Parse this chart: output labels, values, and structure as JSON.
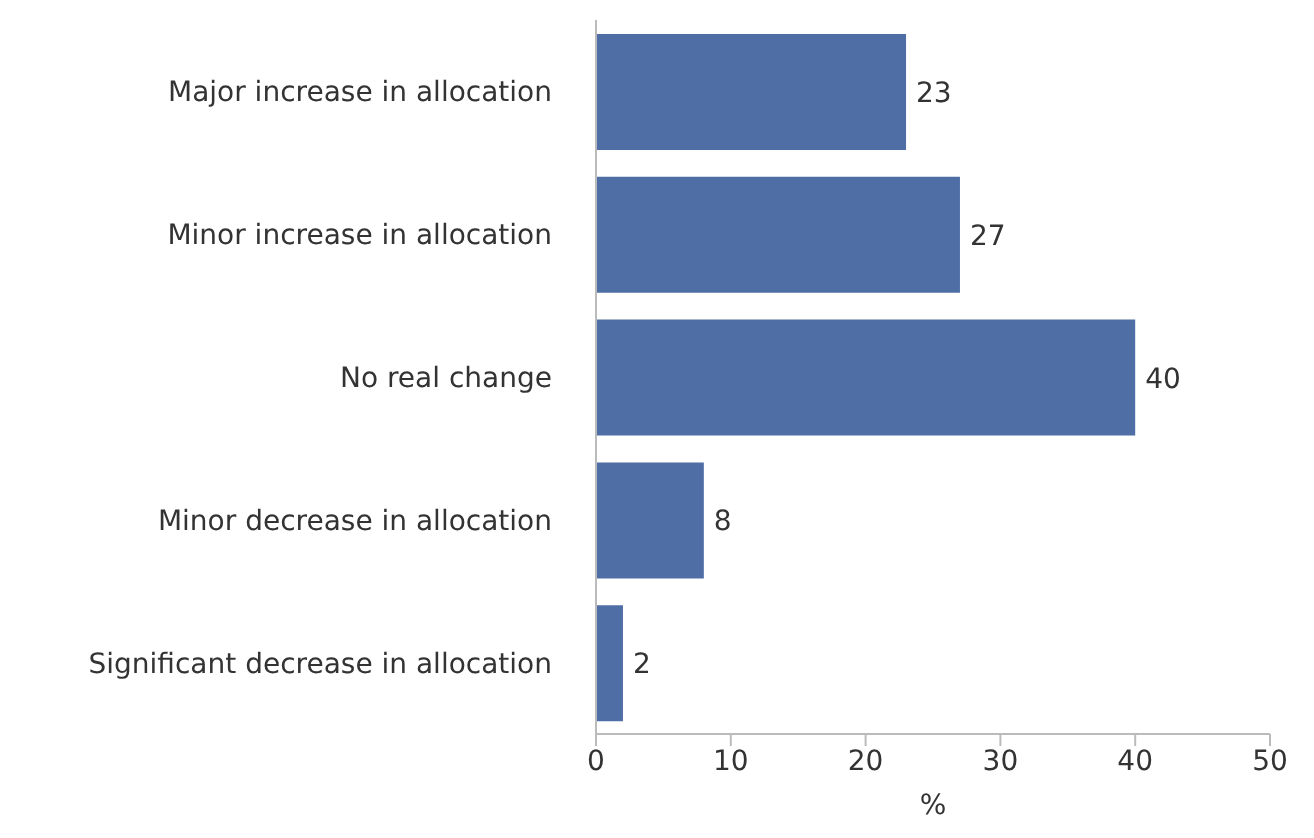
{
  "chart_data": {
    "type": "bar",
    "orientation": "horizontal",
    "categories": [
      "Major increase in allocation",
      "Minor increase in allocation",
      "No real change",
      "Minor decrease in allocation",
      "Significant decrease in allocation"
    ],
    "values": [
      23,
      27,
      40,
      8,
      2
    ],
    "color": "#4f6ea6",
    "xlim": [
      0,
      50
    ],
    "xticks": [
      0,
      10,
      20,
      30,
      40,
      50
    ],
    "xlabel": "%",
    "data_labels": true
  }
}
